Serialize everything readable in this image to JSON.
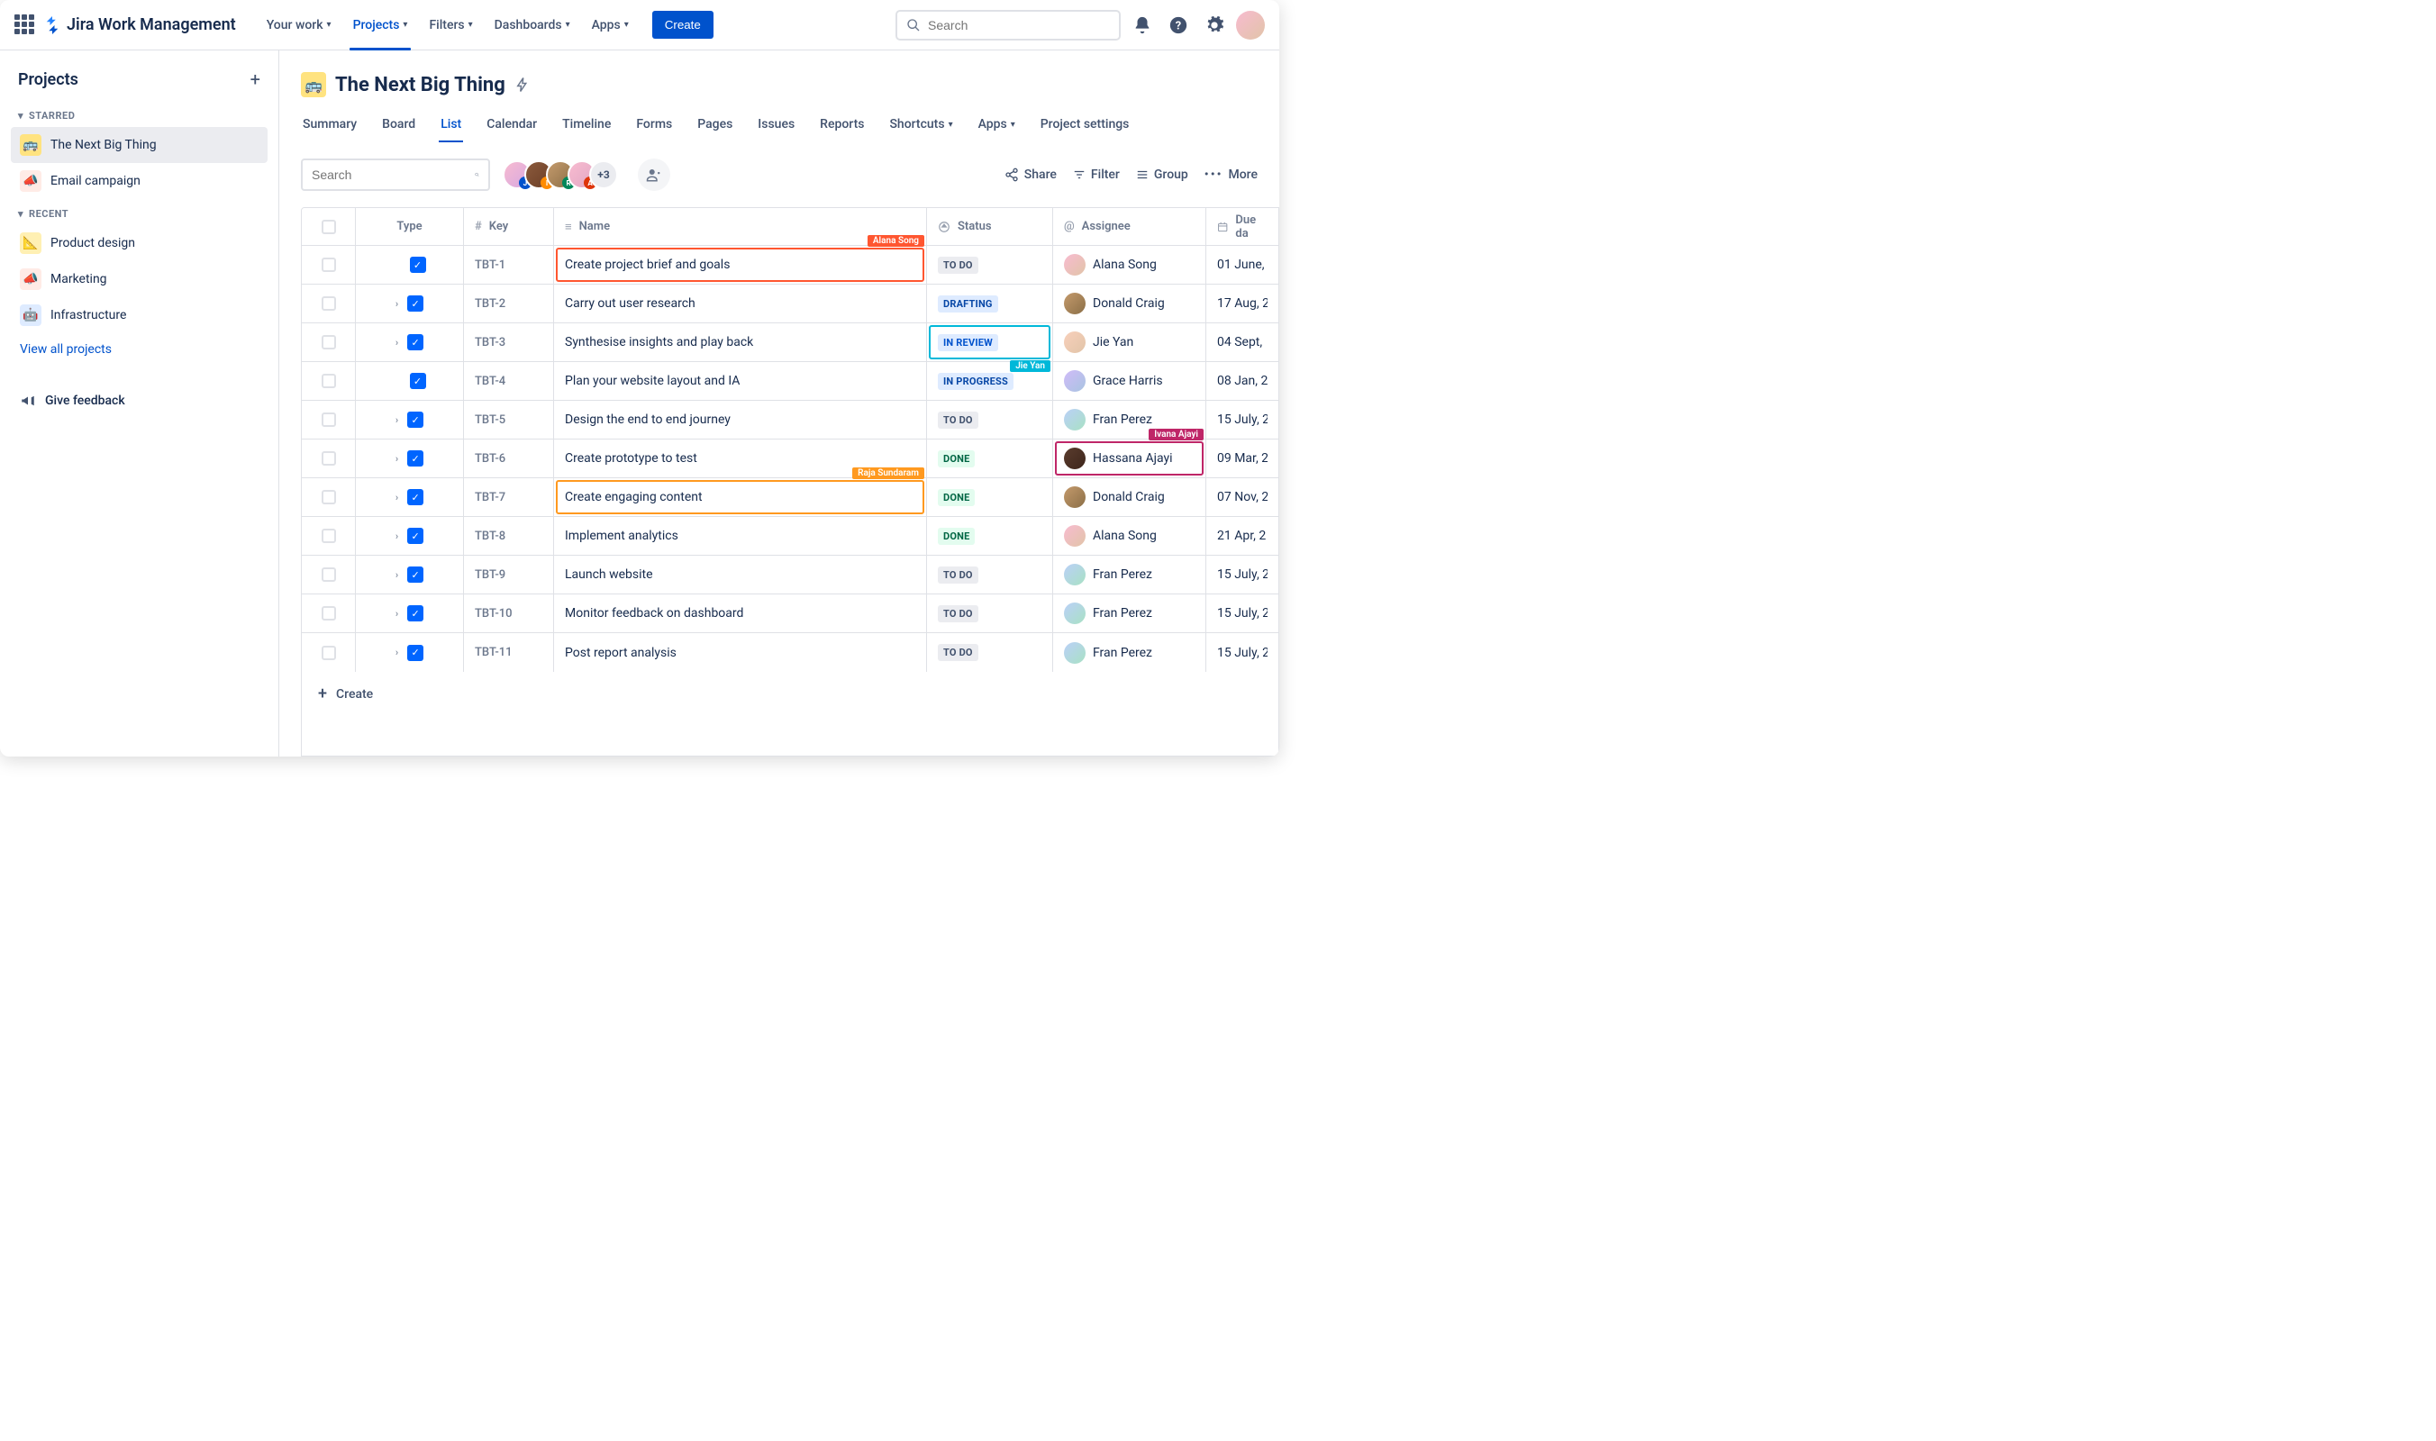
{
  "brand": {
    "name": "Jira Work Management"
  },
  "topnav": {
    "items": [
      {
        "label": "Your work"
      },
      {
        "label": "Projects",
        "active": true
      },
      {
        "label": "Filters"
      },
      {
        "label": "Dashboards"
      },
      {
        "label": "Apps"
      }
    ],
    "create_label": "Create",
    "search_placeholder": "Search"
  },
  "sidebar": {
    "title": "Projects",
    "starred_label": "STARRED",
    "recent_label": "RECENT",
    "starred": [
      {
        "label": "The Next Big Thing",
        "icon": "🚌",
        "bg": "#ffe380",
        "active": true
      },
      {
        "label": "Email campaign",
        "icon": "📣",
        "bg": "#ffebe6"
      }
    ],
    "recent": [
      {
        "label": "Product design",
        "icon": "📐",
        "bg": "#fff0b3"
      },
      {
        "label": "Marketing",
        "icon": "📣",
        "bg": "#ffebe6"
      },
      {
        "label": "Infrastructure",
        "icon": "🤖",
        "bg": "#deebff"
      }
    ],
    "view_all": "View all projects",
    "feedback": "Give feedback"
  },
  "project": {
    "icon": "🚌",
    "name": "The Next Big Thing",
    "tabs": [
      "Summary",
      "Board",
      "List",
      "Calendar",
      "Timeline",
      "Forms",
      "Pages",
      "Issues",
      "Reports",
      "Shortcuts",
      "Apps",
      "Project settings"
    ],
    "active_tab": "List"
  },
  "toolbar": {
    "search_placeholder": "Search",
    "avatar_more": "+3",
    "share": "Share",
    "filter": "Filter",
    "group": "Group",
    "more": "More",
    "avatars": [
      {
        "bg": "linear-gradient(135deg,#f8bbd0,#d7a8e1)",
        "letter": "J",
        "lbg": "#0052cc"
      },
      {
        "bg": "linear-gradient(135deg,#8b5a3c,#6b3e26)",
        "letter": "I",
        "lbg": "#ff8b00"
      },
      {
        "bg": "linear-gradient(135deg,#c49a6c,#8b6f47)",
        "letter": "R",
        "lbg": "#00875a"
      },
      {
        "bg": "linear-gradient(135deg,#f8bbd0,#e1a8c4)",
        "letter": "A",
        "lbg": "#de350b"
      }
    ]
  },
  "columns": {
    "type": "Type",
    "key": "Key",
    "name": "Name",
    "status": "Status",
    "assignee": "Assignee",
    "due": "Due da"
  },
  "highlights": {
    "name_row_0": {
      "color": "#ff5630",
      "tag": "Alana Song"
    },
    "status_row_2": {
      "color": "#00b8d9",
      "tag": "Jie Yan"
    },
    "assignee_row_5": {
      "color": "#bf2668",
      "tag": "Ivana Ajayi"
    },
    "name_row_6": {
      "color": "#ff991f",
      "tag": "Raja Sundaram"
    }
  },
  "rows": [
    {
      "key": "TBT-1",
      "name": "Create project brief and goals",
      "status": "TO DO",
      "status_class": "st-todo",
      "assignee": "Alana Song",
      "av_bg": "linear-gradient(135deg,#f8bbd0,#e1c4a8)",
      "due": "01 June,",
      "expandable": false
    },
    {
      "key": "TBT-2",
      "name": "Carry out user research",
      "status": "DRAFTING",
      "status_class": "st-drafting",
      "assignee": "Donald Craig",
      "av_bg": "linear-gradient(135deg,#c49a6c,#8b6f47)",
      "due": "17 Aug, 2",
      "expandable": true
    },
    {
      "key": "TBT-3",
      "name": "Synthesise insights and play back",
      "status": "IN REVIEW",
      "status_class": "st-inreview",
      "assignee": "Jie Yan",
      "av_bg": "linear-gradient(135deg,#f8d0bb,#e1c4a8)",
      "due": "04 Sept,",
      "expandable": true
    },
    {
      "key": "TBT-4",
      "name": "Plan your website layout and IA",
      "status": "IN PROGRESS",
      "status_class": "st-inprogress",
      "assignee": "Grace Harris",
      "av_bg": "linear-gradient(135deg,#d0bbf8,#a8c4e1)",
      "due": "08 Jan, 2",
      "expandable": false
    },
    {
      "key": "TBT-5",
      "name": "Design the end to end journey",
      "status": "TO DO",
      "status_class": "st-todo",
      "assignee": "Fran Perez",
      "av_bg": "linear-gradient(135deg,#bbd0f8,#a8e1c4)",
      "due": "15 July, 2",
      "expandable": true
    },
    {
      "key": "TBT-6",
      "name": "Create prototype to test",
      "status": "DONE",
      "status_class": "st-done",
      "assignee": "Hassana Ajayi",
      "av_bg": "linear-gradient(135deg,#5a3c2e,#3e261b)",
      "due": "09 Mar, 2",
      "expandable": true
    },
    {
      "key": "TBT-7",
      "name": "Create engaging content",
      "status": "DONE",
      "status_class": "st-done",
      "assignee": "Donald Craig",
      "av_bg": "linear-gradient(135deg,#c49a6c,#8b6f47)",
      "due": "07 Nov, 2",
      "expandable": true
    },
    {
      "key": "TBT-8",
      "name": "Implement analytics",
      "status": "DONE",
      "status_class": "st-done",
      "assignee": "Alana Song",
      "av_bg": "linear-gradient(135deg,#f8bbd0,#e1c4a8)",
      "due": "21 Apr, 2",
      "expandable": true
    },
    {
      "key": "TBT-9",
      "name": "Launch website",
      "status": "TO DO",
      "status_class": "st-todo",
      "assignee": "Fran Perez",
      "av_bg": "linear-gradient(135deg,#bbd0f8,#a8e1c4)",
      "due": "15 July, 2",
      "expandable": true
    },
    {
      "key": "TBT-10",
      "name": "Monitor feedback on dashboard",
      "status": "TO DO",
      "status_class": "st-todo",
      "assignee": "Fran Perez",
      "av_bg": "linear-gradient(135deg,#bbd0f8,#a8e1c4)",
      "due": "15 July, 2",
      "expandable": true
    },
    {
      "key": "TBT-11",
      "name": "Post report analysis",
      "status": "TO DO",
      "status_class": "st-todo",
      "assignee": "Fran Perez",
      "av_bg": "linear-gradient(135deg,#bbd0f8,#a8e1c4)",
      "due": "15 July, 2",
      "expandable": true
    }
  ],
  "create_row": "Create"
}
